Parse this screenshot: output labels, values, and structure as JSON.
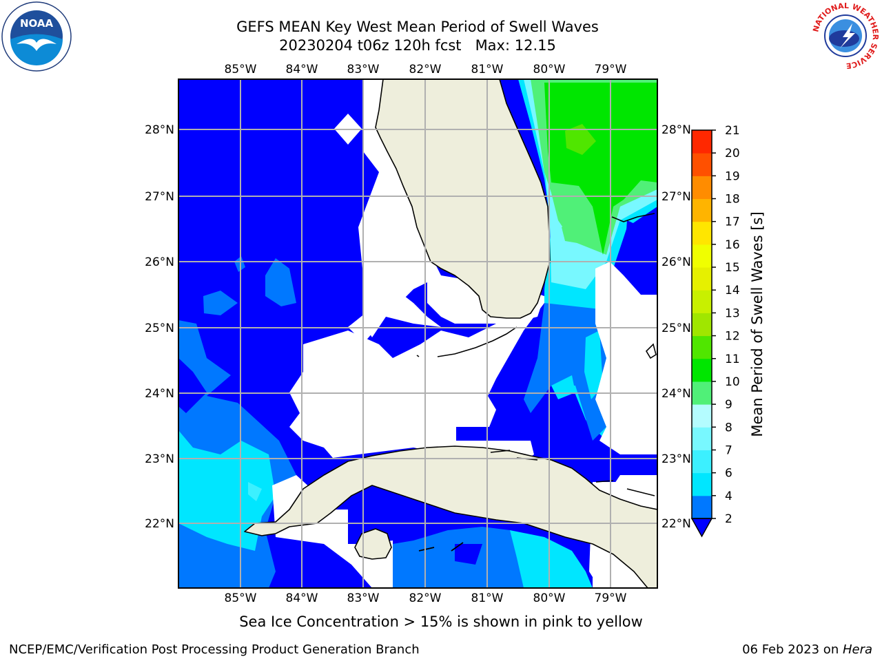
{
  "title": {
    "line1": "GEFS MEAN Key West Mean Period of Swell Waves",
    "line2": "20230204 t06z 120h fcst   Max: 12.15"
  },
  "subtitle": "Sea Ice Concentration > 15% is shown in pink to yellow",
  "footer": {
    "left": "NCEP/EMC/Verification Post Processing Product Generation Branch",
    "right_date": "06 Feb 2023 on ",
    "right_host": "Hera"
  },
  "logos": {
    "noaa_text": "NOAA",
    "nws_ring_text": "NATIONAL WEATHER SERVICE"
  },
  "map": {
    "lon_labels": [
      "85°W",
      "84°W",
      "83°W",
      "82°W",
      "81°W",
      "80°W",
      "79°W"
    ],
    "lat_labels": [
      "28°N",
      "27°N",
      "26°N",
      "25°N",
      "24°N",
      "23°N",
      "22°N"
    ],
    "colors": {
      "ocean_lowest": "#0000ff",
      "land": "#eeeedc",
      "grid": "#b0b0b0",
      "undefined_area": "#ffffff"
    }
  },
  "colorbar": {
    "label": "Mean Period of Swell Waves [s]",
    "ticks": [
      "2",
      "4",
      "6",
      "7",
      "8",
      "9",
      "10",
      "11",
      "12",
      "13",
      "14",
      "15",
      "16",
      "17",
      "18",
      "19",
      "20",
      "21"
    ],
    "colors": [
      "#0078ff",
      "#00e6ff",
      "#3cf0ff",
      "#78f8ff",
      "#b4fcff",
      "#50f078",
      "#00e600",
      "#50e600",
      "#a0e600",
      "#c8f000",
      "#e6f000",
      "#f0ff00",
      "#ffe600",
      "#ffb400",
      "#ff8c00",
      "#ff5000",
      "#ff2800",
      "#ff0000"
    ],
    "under_color": "#0000ff"
  }
}
